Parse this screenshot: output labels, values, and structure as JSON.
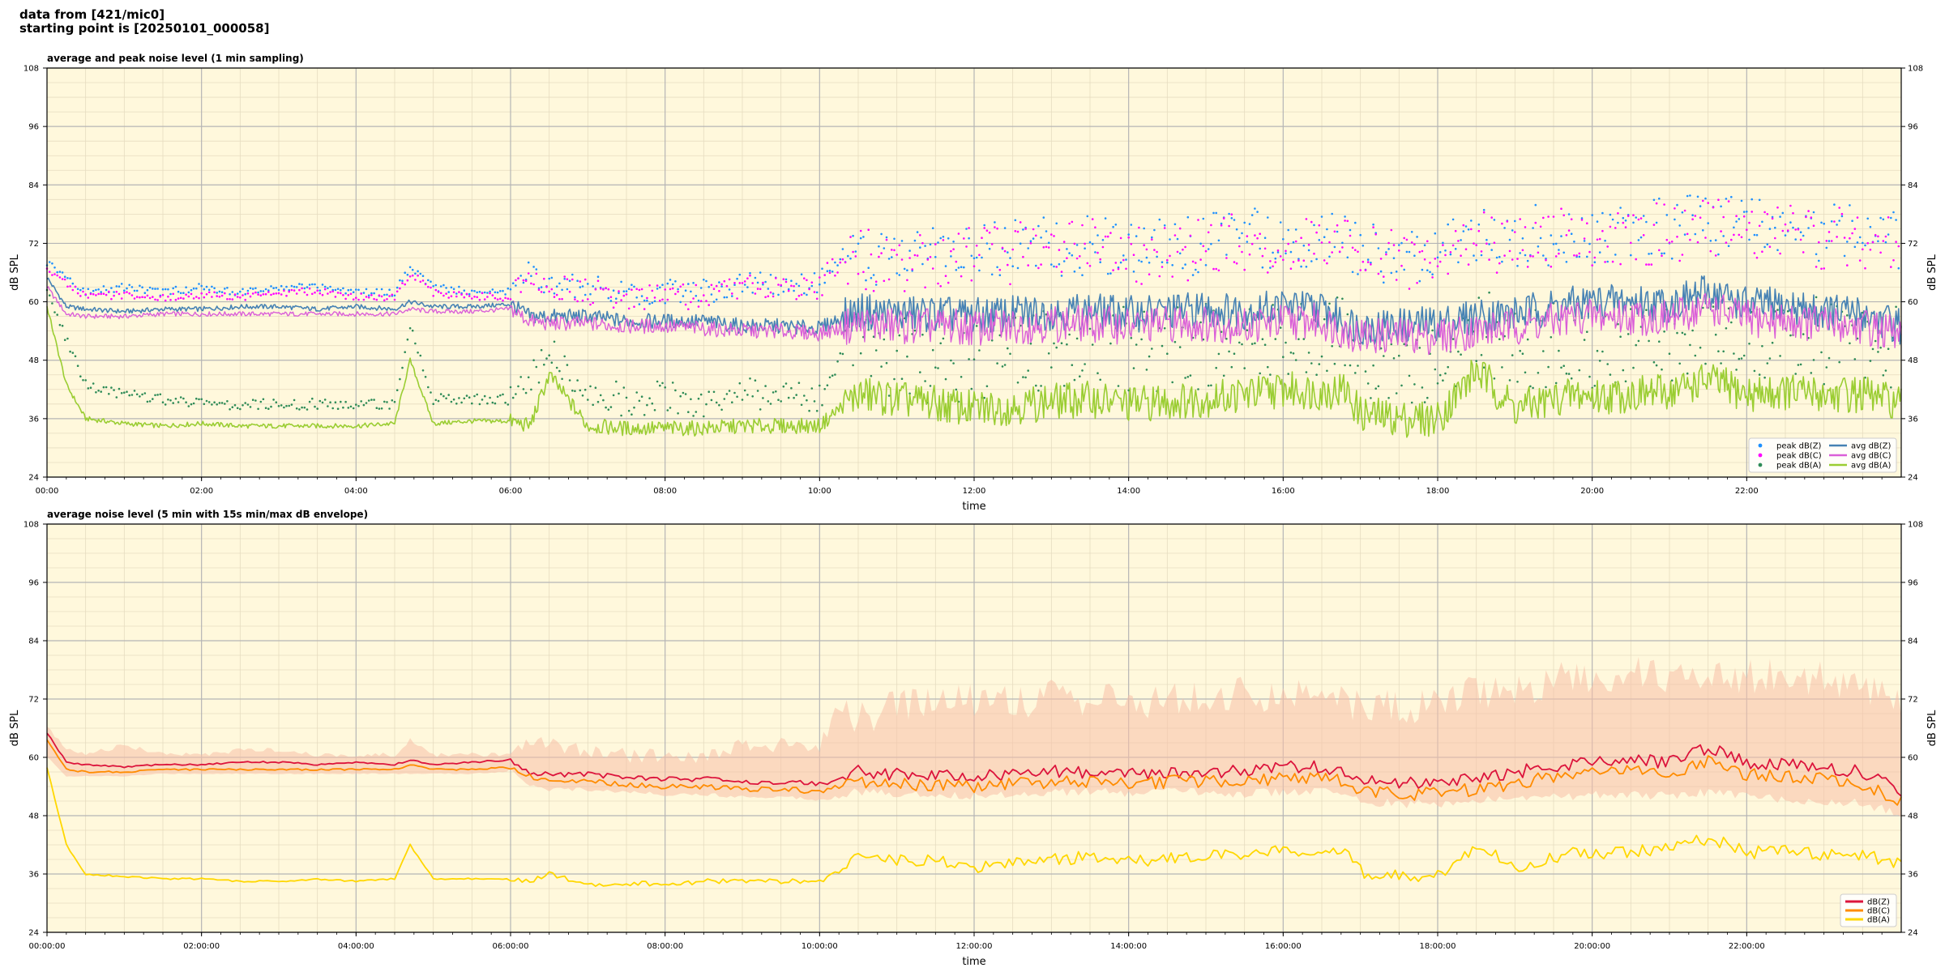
{
  "header": {
    "line1": "data from [421/mic0]",
    "line2": "starting point is [20250101_000058]"
  },
  "colors": {
    "plot_bg": "#fff8dc",
    "avg_z": "#4682b4",
    "avg_c": "#da5fd8",
    "avg_a": "#9acd32",
    "peak_z": "#1e90ff",
    "peak_c": "#ff00ff",
    "peak_a": "#2e8b57",
    "z": "#dc143c",
    "c": "#ff8c00",
    "a": "#ffd700",
    "envelope": "#f7c0a8"
  },
  "chart_data": [
    {
      "type": "line",
      "title": "average and peak noise level (1 min sampling)",
      "xlabel": "time",
      "ylabel": "dB SPL",
      "ylim": [
        24,
        108
      ],
      "yticks": [
        "24",
        "36",
        "48",
        "60",
        "72",
        "84",
        "96",
        "108"
      ],
      "xlim_hours": [
        0,
        24
      ],
      "xticks": [
        "00:00",
        "02:00",
        "04:00",
        "06:00",
        "08:00",
        "10:00",
        "12:00",
        "14:00",
        "16:00",
        "18:00",
        "20:00",
        "22:00"
      ],
      "grid": true,
      "legend_position": "lower-right",
      "legend": [
        "peak dB(Z)",
        "peak dB(C)",
        "peak dB(A)",
        "avg dB(Z)",
        "avg dB(C)",
        "avg dB(A)"
      ],
      "x_hours": [
        0,
        0.25,
        0.5,
        1,
        1.5,
        2,
        2.5,
        3,
        3.5,
        4,
        4.5,
        4.7,
        5,
        5.5,
        6,
        6.25,
        6.5,
        7,
        7.5,
        8,
        8.5,
        9,
        9.5,
        10,
        10.25,
        10.5,
        11,
        11.5,
        12,
        12.5,
        13,
        13.5,
        14,
        14.5,
        15,
        15.5,
        16,
        16.5,
        16.8,
        17,
        17.5,
        18,
        18.5,
        19,
        19.5,
        19.8,
        20,
        20.5,
        21,
        21.5,
        22,
        22.5,
        23,
        23.5,
        24
      ],
      "series": [
        {
          "name": "avg dB(Z)",
          "values": [
            65,
            59,
            58.5,
            58,
            58.5,
            58.5,
            59,
            59,
            58.5,
            59,
            58.5,
            60,
            59,
            59,
            59.5,
            57,
            57,
            57,
            56,
            56,
            56,
            55,
            55,
            54.5,
            56.5,
            58,
            57.5,
            57.5,
            57,
            57.5,
            58,
            58,
            57.5,
            58,
            58.5,
            58,
            59,
            58.5,
            56,
            55,
            55,
            55.5,
            57,
            57.5,
            59,
            59.5,
            60,
            60,
            59.5,
            62,
            59.5,
            59,
            58,
            57.5,
            55
          ]
        },
        {
          "name": "avg dB(C)",
          "values": [
            63,
            57.5,
            57,
            57,
            57.5,
            57.5,
            57.5,
            57.5,
            57.5,
            57.5,
            57.5,
            58.5,
            58,
            58,
            58.5,
            56,
            55.5,
            55.5,
            55,
            55,
            54.5,
            54,
            54,
            53.5,
            54.5,
            55.5,
            55,
            55,
            54.5,
            55,
            55.5,
            55.5,
            55,
            55.5,
            55.5,
            55,
            56,
            56,
            54,
            53,
            53,
            53,
            54,
            55,
            56,
            57,
            57,
            57,
            56.5,
            59,
            56.5,
            56,
            55.5,
            55,
            53
          ]
        },
        {
          "name": "avg dB(A)",
          "values": [
            59,
            43,
            36,
            35,
            34.5,
            35,
            34.5,
            34.5,
            34.5,
            34.5,
            35,
            48,
            35,
            35.5,
            35.5,
            34.5,
            45,
            34.5,
            34,
            34,
            34,
            34.5,
            34.5,
            34.5,
            38,
            41,
            40,
            39,
            38,
            38.5,
            39.5,
            40,
            39,
            39.5,
            40,
            41,
            42,
            41.5,
            42,
            37,
            36,
            36,
            46,
            38,
            40,
            41,
            40.5,
            41,
            41.5,
            44,
            41,
            41.5,
            41,
            41,
            39
          ]
        },
        {
          "name": "peak dB(Z)",
          "values": [
            68,
            65,
            62,
            63,
            62,
            63,
            62,
            63,
            63,
            62,
            62,
            67,
            63,
            62,
            62,
            66,
            64,
            63,
            62,
            62,
            62,
            64,
            64,
            64,
            70,
            70,
            68,
            70,
            70,
            71,
            71,
            72,
            71,
            71,
            72,
            73,
            73,
            73,
            72,
            70,
            70,
            70,
            73,
            73,
            74,
            74,
            74,
            75,
            75,
            76,
            75,
            75,
            74,
            74,
            72
          ]
        },
        {
          "name": "peak dB(C)",
          "values": [
            67,
            64,
            61,
            61.5,
            61,
            61.5,
            61,
            62,
            62,
            61,
            61,
            66,
            62,
            61,
            61,
            65,
            63,
            62,
            61,
            61,
            61,
            63,
            63,
            63,
            69,
            69,
            67,
            69,
            69,
            70,
            70,
            71,
            70,
            70,
            71,
            72,
            72,
            72,
            71,
            69,
            69,
            69,
            72,
            72,
            73,
            73,
            73,
            74,
            74,
            75,
            74,
            74,
            73,
            73,
            71
          ]
        },
        {
          "name": "peak dB(A)",
          "values": [
            62,
            52,
            43,
            41,
            40,
            39,
            39,
            39,
            39,
            39,
            39,
            55,
            40,
            40,
            40,
            44,
            50,
            41,
            40,
            40,
            40,
            41,
            41,
            41,
            48,
            50,
            49,
            48,
            48,
            49,
            50,
            51,
            50,
            50,
            51,
            52,
            53,
            52,
            53,
            47,
            46,
            46,
            55,
            49,
            51,
            52,
            51,
            52,
            52,
            56,
            52,
            52,
            52,
            52,
            50
          ]
        }
      ]
    },
    {
      "type": "area",
      "title": "average noise level (5 min with 15s min/max dB envelope)",
      "xlabel": "time",
      "ylabel": "dB SPL",
      "ylim": [
        24,
        108
      ],
      "yticks": [
        "24",
        "36",
        "48",
        "60",
        "72",
        "84",
        "96",
        "108"
      ],
      "xlim_hours": [
        0,
        24
      ],
      "xticks": [
        "00:00:00",
        "02:00:00",
        "04:00:00",
        "06:00:00",
        "08:00:00",
        "10:00:00",
        "12:00:00",
        "14:00:00",
        "16:00:00",
        "18:00:00",
        "20:00:00",
        "22:00:00"
      ],
      "grid": true,
      "legend_position": "lower-right",
      "legend": [
        "dB(Z)",
        "dB(C)",
        "dB(A)"
      ],
      "x_hours": [
        0,
        0.25,
        0.5,
        1,
        1.5,
        2,
        2.5,
        3,
        3.5,
        4,
        4.5,
        4.7,
        5,
        5.5,
        6,
        6.25,
        6.5,
        7,
        7.5,
        8,
        8.5,
        9,
        9.5,
        10,
        10.25,
        10.5,
        11,
        11.5,
        12,
        12.5,
        13,
        13.5,
        14,
        14.5,
        15,
        15.5,
        16,
        16.5,
        16.8,
        17,
        17.5,
        18,
        18.5,
        19,
        19.5,
        19.8,
        20,
        20.5,
        21,
        21.5,
        22,
        22.5,
        23,
        23.5,
        24
      ],
      "series": [
        {
          "name": "dB(Z)",
          "values": [
            65,
            59,
            58.5,
            58,
            58.5,
            58.5,
            59,
            59,
            58.5,
            59,
            58.5,
            59.5,
            58.5,
            59,
            59.5,
            57,
            56.5,
            56.5,
            56,
            55.5,
            55.5,
            55,
            55,
            54.5,
            55.5,
            57,
            56.5,
            56.5,
            56,
            56.5,
            57,
            57,
            56.5,
            57,
            57,
            57,
            58,
            58,
            57,
            55,
            54.5,
            55,
            56,
            57,
            58,
            59,
            59.5,
            59.5,
            59,
            62,
            59,
            58.5,
            58,
            57,
            53
          ]
        },
        {
          "name": "dB(C)",
          "values": [
            63.5,
            57.5,
            57,
            57,
            57.5,
            57.5,
            57.5,
            57.5,
            57.5,
            57.5,
            57.5,
            58.5,
            57.5,
            57.5,
            58,
            56,
            55,
            55,
            54.5,
            54,
            54,
            53.5,
            53.5,
            53,
            54,
            55,
            54.5,
            54.5,
            54,
            54.5,
            55,
            55,
            54.5,
            55,
            55,
            55,
            55.5,
            55.5,
            55,
            53,
            52.5,
            52.5,
            53.5,
            54.5,
            56,
            56.5,
            57,
            57,
            56.5,
            59.5,
            56.5,
            56,
            55.5,
            54.5,
            51
          ]
        },
        {
          "name": "dB(A)",
          "values": [
            58,
            42,
            36,
            35.5,
            35,
            35,
            34.5,
            34.5,
            35,
            34.5,
            35,
            42,
            35,
            35,
            35,
            34.5,
            36,
            34,
            34,
            34,
            34.5,
            34.5,
            34.5,
            34.5,
            36.5,
            39.5,
            39,
            38.5,
            37.5,
            38,
            39,
            39.5,
            38.5,
            39,
            39.5,
            40,
            41,
            40.5,
            40.5,
            36.5,
            35.5,
            35.5,
            42,
            37.5,
            39.5,
            40.5,
            40,
            40.5,
            41,
            43.5,
            40.5,
            40.5,
            40,
            40,
            38
          ]
        },
        {
          "name": "envelope max",
          "values": [
            67,
            62,
            61,
            63,
            61,
            61,
            62,
            62,
            61,
            61,
            61,
            64,
            61,
            61,
            61,
            65,
            64,
            63,
            62,
            62,
            62,
            64,
            64,
            64,
            72,
            72,
            74,
            76,
            76,
            76,
            76,
            76,
            76,
            76,
            76,
            77,
            77,
            77,
            76,
            74,
            74,
            74,
            78,
            78,
            80,
            80,
            80,
            81,
            81,
            82,
            81,
            80,
            80,
            79,
            74
          ]
        },
        {
          "name": "envelope min",
          "values": [
            60,
            56,
            56,
            56,
            56.5,
            56.5,
            56.5,
            56.5,
            56.5,
            56.5,
            56.5,
            56.5,
            56.5,
            56.5,
            57,
            54,
            53,
            53,
            52.5,
            52,
            52,
            51.5,
            51.5,
            51,
            51.5,
            52,
            51.5,
            51.5,
            51,
            51.5,
            52,
            52,
            51.5,
            52,
            52,
            51.5,
            52,
            52,
            51.5,
            50,
            49.5,
            49.5,
            50,
            50.5,
            51,
            51,
            51.5,
            51.5,
            51,
            52,
            51,
            50.5,
            50,
            49.5,
            47.5
          ]
        }
      ]
    }
  ]
}
